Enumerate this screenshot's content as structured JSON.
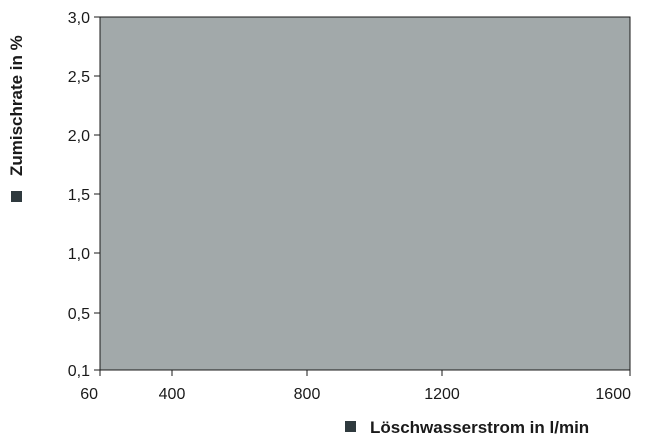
{
  "chart_data": {
    "type": "area",
    "title": "",
    "xlabel": "Löschwasserstrom in l/min",
    "ylabel": "Zumischrate in %",
    "x_ticks": [
      "60",
      "400",
      "800",
      "1200",
      "1600"
    ],
    "x_tick_values": [
      60,
      400,
      800,
      1200,
      1600
    ],
    "y_ticks": [
      "0,1",
      "0,5",
      "1,0",
      "1,5",
      "2,0",
      "2,5",
      "3,0"
    ],
    "y_tick_values": [
      0.1,
      0.5,
      1.0,
      1.5,
      2.0,
      2.5,
      3.0
    ],
    "xlim": [
      60,
      1600
    ],
    "ylim": [
      0.1,
      3.0
    ],
    "region": {
      "x": [
        60,
        1600
      ],
      "y": [
        0.1,
        3.0
      ]
    },
    "grid": false,
    "colors": {
      "fill": "#a2a9aa",
      "frame": "#1a1a1a",
      "marker": "#2f3a3e",
      "text": "#1a1a1a"
    }
  }
}
